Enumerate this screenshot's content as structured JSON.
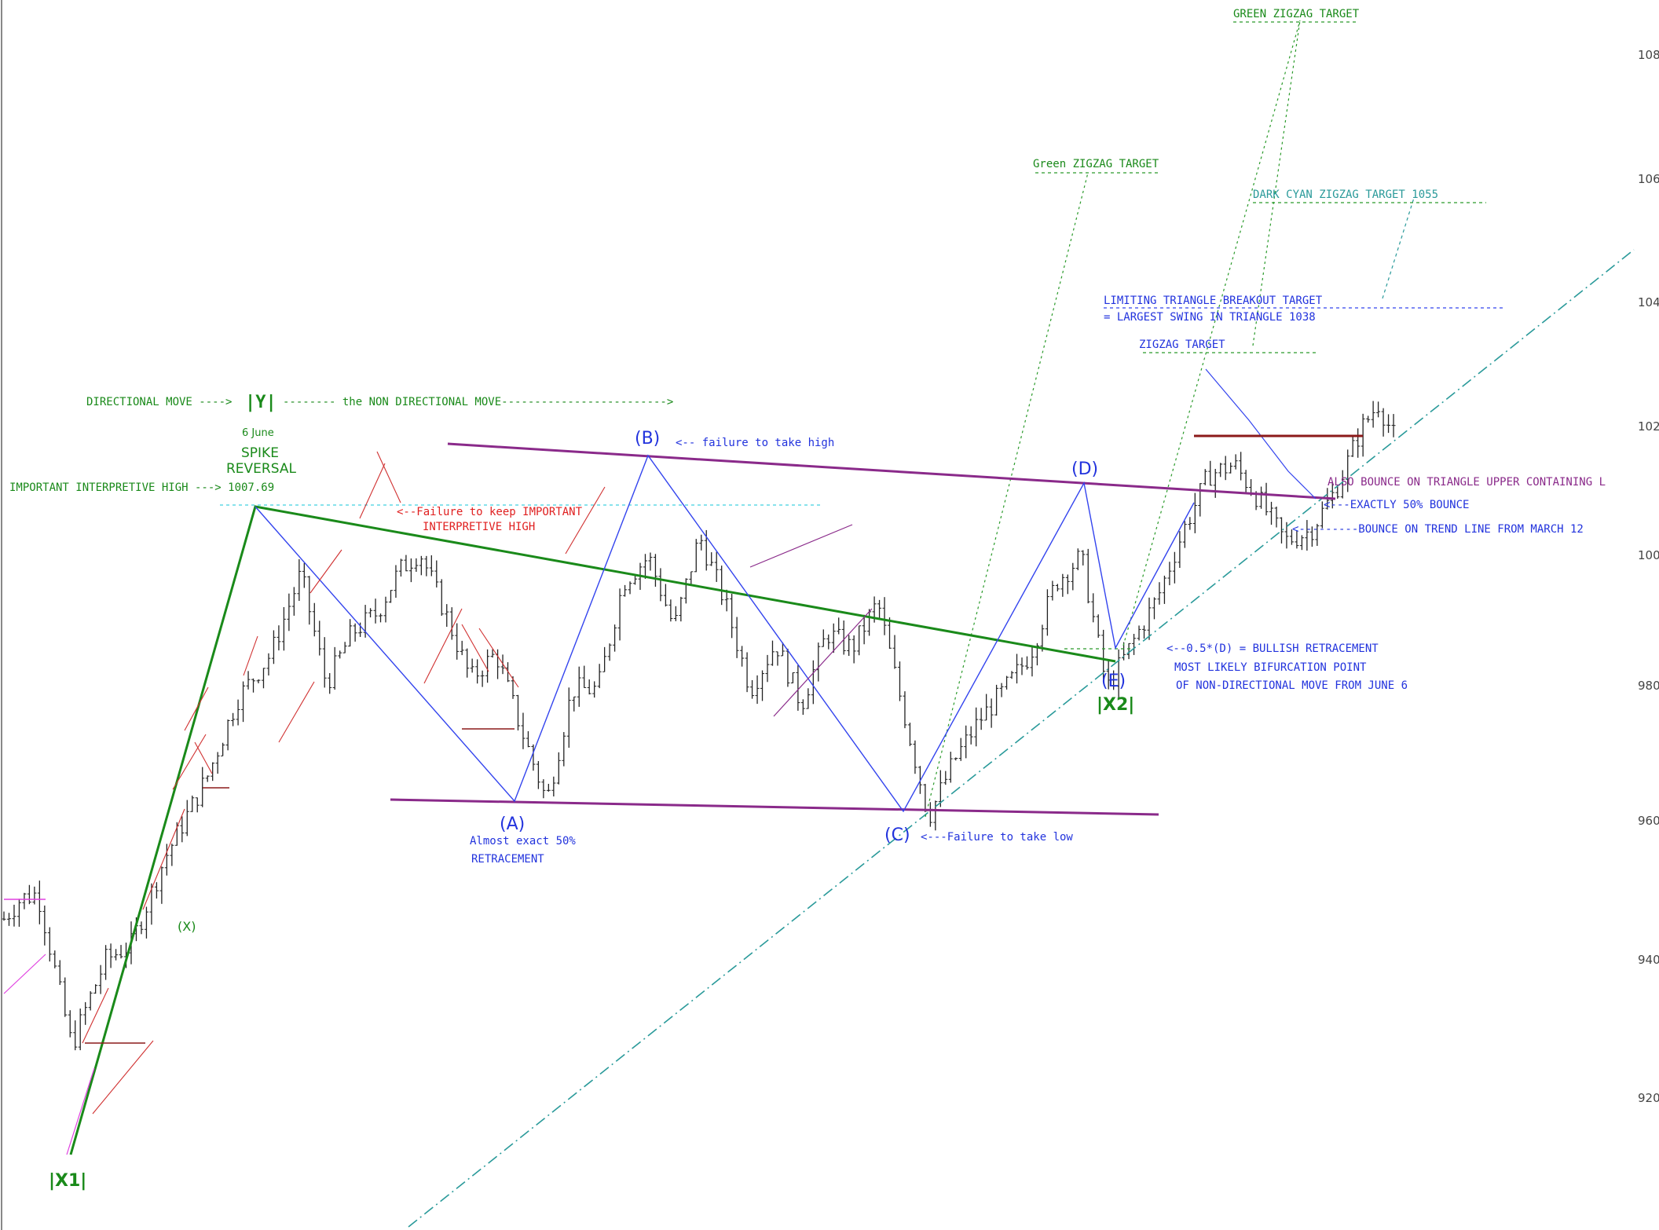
{
  "chart_data": {
    "type": "line",
    "title": "",
    "xlabel": "",
    "ylabel": "",
    "y_tick_labels": [
      "108",
      "106",
      "104",
      "102",
      "100",
      "980",
      "960",
      "940",
      "920"
    ],
    "ylim": [
      906,
      1084
    ],
    "grid": false,
    "price_path": [
      {
        "bar": 0,
        "close": 940
      },
      {
        "bar": 4,
        "close": 944
      },
      {
        "bar": 8,
        "close": 945
      },
      {
        "bar": 12,
        "close": 930
      },
      {
        "bar": 16,
        "close": 915
      },
      {
        "bar": 20,
        "close": 924
      },
      {
        "bar": 24,
        "close": 932
      },
      {
        "bar": 30,
        "close": 935
      },
      {
        "bar": 38,
        "close": 952
      },
      {
        "bar": 48,
        "close": 968
      },
      {
        "bar": 55,
        "close": 983
      },
      {
        "bar": 63,
        "close": 992
      },
      {
        "bar": 70,
        "close": 1007.69
      },
      {
        "bar": 76,
        "close": 986
      },
      {
        "bar": 82,
        "close": 996
      },
      {
        "bar": 88,
        "close": 1000
      },
      {
        "bar": 93,
        "close": 1008
      },
      {
        "bar": 98,
        "close": 1012
      },
      {
        "bar": 104,
        "close": 1000
      },
      {
        "bar": 110,
        "close": 987
      },
      {
        "bar": 116,
        "close": 992
      },
      {
        "bar": 122,
        "close": 977
      },
      {
        "bar": 128,
        "close": 963
      },
      {
        "bar": 134,
        "close": 985
      },
      {
        "bar": 140,
        "close": 985
      },
      {
        "bar": 146,
        "close": 1006
      },
      {
        "bar": 152,
        "close": 1011
      },
      {
        "bar": 158,
        "close": 997
      },
      {
        "bar": 164,
        "close": 1015
      },
      {
        "bar": 170,
        "close": 1002
      },
      {
        "bar": 176,
        "close": 985
      },
      {
        "bar": 182,
        "close": 994
      },
      {
        "bar": 188,
        "close": 982
      },
      {
        "bar": 194,
        "close": 996
      },
      {
        "bar": 200,
        "close": 993
      },
      {
        "bar": 206,
        "close": 1002
      },
      {
        "bar": 212,
        "close": 981
      },
      {
        "bar": 218,
        "close": 960
      },
      {
        "bar": 224,
        "close": 971
      },
      {
        "bar": 230,
        "close": 979
      },
      {
        "bar": 236,
        "close": 985
      },
      {
        "bar": 242,
        "close": 992
      },
      {
        "bar": 248,
        "close": 1006
      },
      {
        "bar": 254,
        "close": 1011
      },
      {
        "bar": 260,
        "close": 985
      },
      {
        "bar": 266,
        "close": 994
      },
      {
        "bar": 272,
        "close": 1003
      },
      {
        "bar": 278,
        "close": 1016
      },
      {
        "bar": 284,
        "close": 1027
      },
      {
        "bar": 290,
        "close": 1029
      },
      {
        "bar": 296,
        "close": 1022
      },
      {
        "bar": 302,
        "close": 1014
      },
      {
        "bar": 308,
        "close": 1016
      },
      {
        "bar": 314,
        "close": 1024
      },
      {
        "bar": 320,
        "close": 1036
      },
      {
        "bar": 324,
        "close": 1041
      },
      {
        "bar": 328,
        "close": 1034
      }
    ],
    "waves": [
      {
        "label": "|X1|",
        "bar": 16,
        "price": 915
      },
      {
        "label": "|Y|",
        "bar": 70,
        "price": 1007.69
      },
      {
        "label": "(A)",
        "bar": 128,
        "price": 963
      },
      {
        "label": "(B)",
        "bar": 158,
        "price": 1015
      },
      {
        "label": "(C)",
        "bar": 218,
        "price": 960
      },
      {
        "label": "(D)",
        "bar": 260,
        "price": 1011
      },
      {
        "label": "(E)",
        "bar": 272,
        "price": 988
      },
      {
        "label": "|X2|",
        "bar": 272,
        "price": 988
      }
    ],
    "price_levels": {
      "important_interpretive_high": 1007.69,
      "dark_cyan_zigzag_target": 1055,
      "limiting_triangle_target": 1038
    },
    "series": [
      {
        "name": "price bars",
        "color": "#222222"
      },
      {
        "name": "A-B-C-D-E",
        "color": "#3344ee"
      },
      {
        "name": "X1-Y-X2",
        "color": "#1a8a1a"
      },
      {
        "name": "triangle",
        "color": "#8a2a8a"
      },
      {
        "name": "trend line",
        "color": "#2a9a9a"
      }
    ]
  },
  "labels": {
    "directional_move": "DIRECTIONAL MOVE ---->",
    "y_wave": "|Y|",
    "non_directional": "-------- the NON DIRECTIONAL MOVE------------------------->",
    "six_june": "6 June",
    "spike": "SPIKE",
    "reversal": "REVERSAL",
    "important_high": "IMPORTANT INTERPRETIVE HIGH ---> 1007.69",
    "failure_keep_1": "<--Failure to keep IMPORTANT",
    "failure_keep_2": "INTERPRETIVE HIGH",
    "b_wave": "(B)",
    "failure_high": "<-- failure to take high",
    "a_wave": "(A)",
    "almost_50": "Almost exact 50%",
    "retracement": "RETRACEMENT",
    "c_wave": "(C)",
    "failure_low": "<---Failure to take low",
    "d_wave": "(D)",
    "e_wave": "(E)",
    "x2_wave": "|X2|",
    "x1_wave": "|X1|",
    "x_wave": "(X)",
    "bullish_1": "<--0.5*(D) = BULLISH RETRACEMENT",
    "bullish_2": "MOST LIKELY BIFURCATION POINT",
    "bullish_3": "OF NON-DIRECTIONAL MOVE FROM JUNE 6",
    "green_zigzag_upper": "GREEN ZIGZAG TARGET",
    "green_zigzag_mixed": "Green ZIGZAG TARGET",
    "dark_cyan": "DARK CYAN ZIGZAG TARGET  1055",
    "limiting_1": "LIMITING TRIANGLE BREAKOUT TARGET",
    "limiting_2": "= LARGEST SWING IN TRIANGLE   1038",
    "zigzag_target": "ZIGZAG TARGET",
    "also_bounce": "ALSO BOUNCE ON TRIANGLE UPPER CONTAINING L",
    "exactly_50": "<---EXACTLY 50% BOUNCE",
    "bounce_trend": "<---------BOUNCE ON TREND LINE FROM MARCH 12"
  },
  "colors": {
    "bars": "#222222",
    "green": "#1a8a1a",
    "blue": "#3344ee",
    "red": "#e02020",
    "purple": "#8a2a8a",
    "cyan": "#2a9a9a",
    "brown": "#8b1a1a",
    "magenta": "#e040e0"
  }
}
